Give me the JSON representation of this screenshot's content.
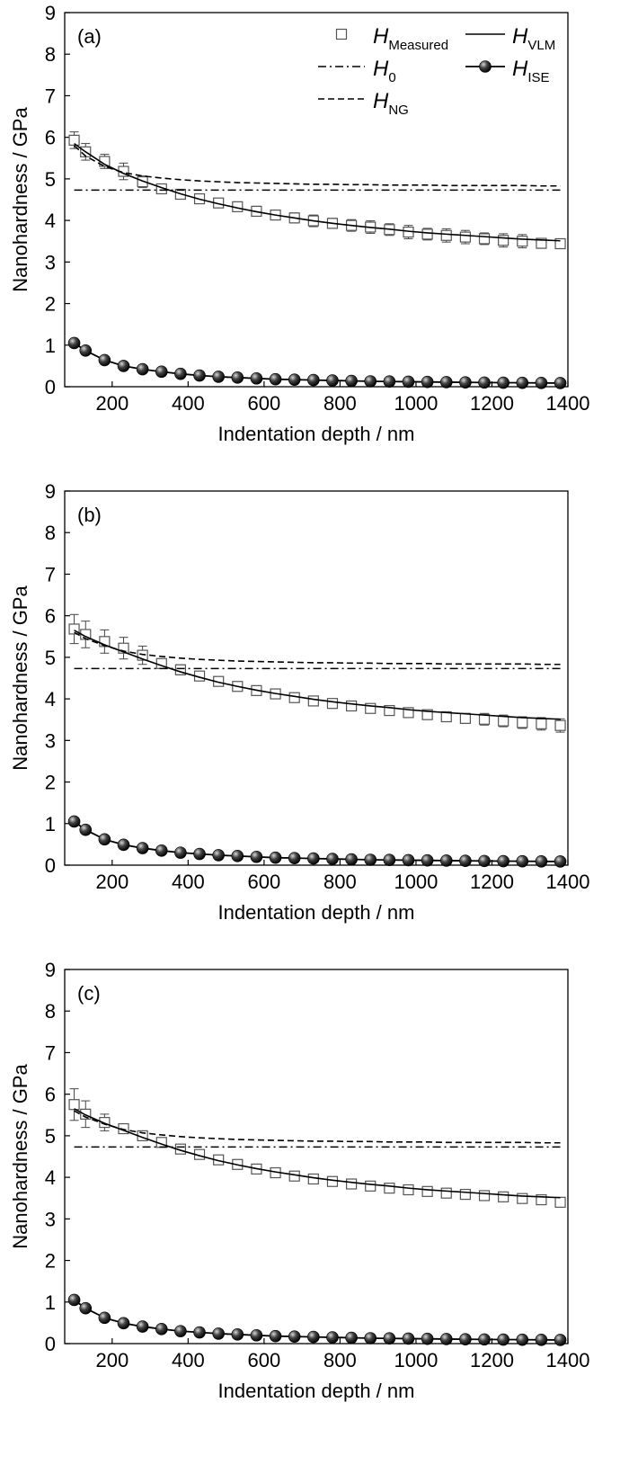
{
  "chart_data": [
    {
      "panel": "(a)",
      "type": "line",
      "xlabel": "Indentation depth / nm",
      "ylabel": "Nanohardness / GPa",
      "xlim": [
        75,
        1400
      ],
      "ylim": [
        0,
        9
      ],
      "xticks": [
        200,
        400,
        600,
        800,
        1000,
        1200,
        1400
      ],
      "yticks": [
        0,
        1,
        2,
        3,
        4,
        5,
        6,
        7,
        8,
        9
      ],
      "legend": [
        {
          "series": "measured",
          "main": "H",
          "sub": "Measured"
        },
        {
          "series": "vlm",
          "main": "H",
          "sub": "VLM"
        },
        {
          "series": "h0",
          "main": "H",
          "sub": "0"
        },
        {
          "series": "ise",
          "main": "H",
          "sub": "ISE"
        },
        {
          "series": "ng",
          "main": "H",
          "sub": "NG"
        }
      ],
      "x": [
        100,
        130,
        180,
        230,
        280,
        330,
        380,
        430,
        480,
        530,
        580,
        630,
        680,
        730,
        780,
        830,
        880,
        930,
        980,
        1030,
        1080,
        1130,
        1180,
        1230,
        1280,
        1330,
        1380
      ],
      "series": [
        {
          "key": "measured",
          "style": "open-square",
          "values": [
            5.93,
            5.65,
            5.42,
            5.18,
            4.93,
            4.76,
            4.63,
            4.52,
            4.42,
            4.33,
            4.22,
            4.13,
            4.06,
            3.99,
            3.93,
            3.88,
            3.84,
            3.78,
            3.72,
            3.67,
            3.64,
            3.6,
            3.56,
            3.52,
            3.5,
            3.45,
            3.44
          ],
          "err": [
            0.2,
            0.2,
            0.17,
            0.2,
            0.14,
            0.1,
            0.1,
            0.1,
            0.08,
            0.08,
            0.12,
            0.1,
            0.12,
            0.14,
            0.12,
            0.14,
            0.15,
            0.14,
            0.16,
            0.14,
            0.16,
            0.16,
            0.14,
            0.16,
            0.16,
            0.12,
            0.12
          ]
        },
        {
          "key": "vlm",
          "style": "solid",
          "values": [
            5.85,
            5.65,
            5.35,
            5.13,
            4.95,
            4.79,
            4.64,
            4.51,
            4.4,
            4.3,
            4.21,
            4.13,
            4.06,
            3.99,
            3.93,
            3.88,
            3.83,
            3.79,
            3.74,
            3.7,
            3.67,
            3.64,
            3.61,
            3.58,
            3.55,
            3.53,
            3.51
          ]
        },
        {
          "key": "h0",
          "style": "dash-dot",
          "values": [
            4.73,
            4.73,
            4.73,
            4.73,
            4.73,
            4.73,
            4.73,
            4.73,
            4.73,
            4.73,
            4.73,
            4.73,
            4.73,
            4.73,
            4.73,
            4.73,
            4.73,
            4.73,
            4.73,
            4.73,
            4.73,
            4.73,
            4.73,
            4.73,
            4.73,
            4.73,
            4.73
          ]
        },
        {
          "key": "ng",
          "style": "dashed",
          "values": [
            5.8,
            5.55,
            5.3,
            5.15,
            5.07,
            5.02,
            4.98,
            4.95,
            4.93,
            4.91,
            4.9,
            4.89,
            4.88,
            4.87,
            4.87,
            4.86,
            4.86,
            4.85,
            4.85,
            4.85,
            4.84,
            4.84,
            4.84,
            4.84,
            4.84,
            4.83,
            4.83
          ]
        },
        {
          "key": "ise",
          "style": "filled-sphere",
          "values": [
            1.05,
            0.87,
            0.64,
            0.5,
            0.42,
            0.36,
            0.31,
            0.27,
            0.24,
            0.22,
            0.2,
            0.18,
            0.17,
            0.16,
            0.15,
            0.14,
            0.13,
            0.125,
            0.12,
            0.115,
            0.11,
            0.105,
            0.1,
            0.097,
            0.094,
            0.091,
            0.088
          ]
        }
      ]
    },
    {
      "panel": "(b)",
      "type": "line",
      "xlabel": "Indentation depth / nm",
      "ylabel": "Nanohardness / GPa",
      "xlim": [
        75,
        1400
      ],
      "ylim": [
        0,
        9
      ],
      "xticks": [
        200,
        400,
        600,
        800,
        1000,
        1200,
        1400
      ],
      "yticks": [
        0,
        1,
        2,
        3,
        4,
        5,
        6,
        7,
        8,
        9
      ],
      "legend": [],
      "x": [
        100,
        130,
        180,
        230,
        280,
        330,
        380,
        430,
        480,
        530,
        580,
        630,
        680,
        730,
        780,
        830,
        880,
        930,
        980,
        1030,
        1080,
        1130,
        1180,
        1230,
        1280,
        1330,
        1380
      ],
      "series": [
        {
          "key": "measured",
          "style": "open-square",
          "values": [
            5.68,
            5.55,
            5.38,
            5.22,
            5.05,
            4.85,
            4.7,
            4.55,
            4.42,
            4.3,
            4.2,
            4.12,
            4.03,
            3.95,
            3.89,
            3.83,
            3.77,
            3.72,
            3.67,
            3.62,
            3.57,
            3.53,
            3.51,
            3.47,
            3.43,
            3.4,
            3.36
          ],
          "err": [
            0.35,
            0.32,
            0.28,
            0.26,
            0.22,
            0.1,
            0.12,
            0.1,
            0.06,
            0.05,
            0.06,
            0.06,
            0.06,
            0.05,
            0.05,
            0.06,
            0.06,
            0.06,
            0.08,
            0.1,
            0.12,
            0.12,
            0.14,
            0.14,
            0.14,
            0.15,
            0.16
          ]
        },
        {
          "key": "vlm",
          "style": "solid",
          "values": [
            5.65,
            5.5,
            5.3,
            5.13,
            4.96,
            4.8,
            4.65,
            4.52,
            4.4,
            4.3,
            4.21,
            4.13,
            4.06,
            3.99,
            3.93,
            3.88,
            3.83,
            3.79,
            3.74,
            3.7,
            3.67,
            3.64,
            3.61,
            3.58,
            3.55,
            3.53,
            3.51
          ]
        },
        {
          "key": "h0",
          "style": "dash-dot",
          "values": [
            4.73,
            4.73,
            4.73,
            4.73,
            4.73,
            4.73,
            4.73,
            4.73,
            4.73,
            4.73,
            4.73,
            4.73,
            4.73,
            4.73,
            4.73,
            4.73,
            4.73,
            4.73,
            4.73,
            4.73,
            4.73,
            4.73,
            4.73,
            4.73,
            4.73,
            4.73,
            4.73
          ]
        },
        {
          "key": "ng",
          "style": "dashed",
          "values": [
            5.6,
            5.45,
            5.28,
            5.15,
            5.07,
            5.02,
            4.98,
            4.95,
            4.93,
            4.91,
            4.9,
            4.89,
            4.88,
            4.87,
            4.87,
            4.86,
            4.86,
            4.85,
            4.85,
            4.85,
            4.84,
            4.84,
            4.84,
            4.84,
            4.84,
            4.83,
            4.83
          ]
        },
        {
          "key": "ise",
          "style": "filled-sphere",
          "values": [
            1.05,
            0.85,
            0.62,
            0.49,
            0.41,
            0.35,
            0.3,
            0.27,
            0.24,
            0.22,
            0.2,
            0.18,
            0.17,
            0.16,
            0.15,
            0.14,
            0.13,
            0.125,
            0.12,
            0.115,
            0.11,
            0.105,
            0.1,
            0.097,
            0.094,
            0.091,
            0.088
          ]
        }
      ]
    },
    {
      "panel": "(c)",
      "type": "line",
      "xlabel": "Indentation depth / nm",
      "ylabel": "Nanohardness / GPa",
      "xlim": [
        75,
        1400
      ],
      "ylim": [
        0,
        9
      ],
      "xticks": [
        200,
        400,
        600,
        800,
        1000,
        1200,
        1400
      ],
      "yticks": [
        0,
        1,
        2,
        3,
        4,
        5,
        6,
        7,
        8,
        9
      ],
      "legend": [],
      "x": [
        100,
        130,
        180,
        230,
        280,
        330,
        380,
        430,
        480,
        530,
        580,
        630,
        680,
        730,
        780,
        830,
        880,
        930,
        980,
        1030,
        1080,
        1130,
        1180,
        1230,
        1280,
        1330,
        1380
      ],
      "series": [
        {
          "key": "measured",
          "style": "open-square",
          "values": [
            5.75,
            5.52,
            5.32,
            5.17,
            5.0,
            4.84,
            4.68,
            4.55,
            4.42,
            4.31,
            4.2,
            4.11,
            4.03,
            3.96,
            3.9,
            3.84,
            3.79,
            3.74,
            3.7,
            3.66,
            3.62,
            3.59,
            3.56,
            3.53,
            3.49,
            3.46,
            3.4
          ],
          "err": [
            0.38,
            0.32,
            0.2,
            0.1,
            0.08,
            0.06,
            0.06,
            0.05,
            0.05,
            0.05,
            0.05,
            0.05,
            0.05,
            0.05,
            0.05,
            0.05,
            0.05,
            0.05,
            0.05,
            0.05,
            0.05,
            0.05,
            0.05,
            0.05,
            0.05,
            0.05,
            0.06
          ]
        },
        {
          "key": "vlm",
          "style": "solid",
          "values": [
            5.65,
            5.5,
            5.3,
            5.13,
            4.96,
            4.8,
            4.65,
            4.52,
            4.4,
            4.3,
            4.21,
            4.13,
            4.06,
            3.99,
            3.93,
            3.88,
            3.83,
            3.79,
            3.74,
            3.7,
            3.67,
            3.64,
            3.61,
            3.58,
            3.55,
            3.53,
            3.51
          ]
        },
        {
          "key": "h0",
          "style": "dash-dot",
          "values": [
            4.73,
            4.73,
            4.73,
            4.73,
            4.73,
            4.73,
            4.73,
            4.73,
            4.73,
            4.73,
            4.73,
            4.73,
            4.73,
            4.73,
            4.73,
            4.73,
            4.73,
            4.73,
            4.73,
            4.73,
            4.73,
            4.73,
            4.73,
            4.73,
            4.73,
            4.73,
            4.73
          ]
        },
        {
          "key": "ng",
          "style": "dashed",
          "values": [
            5.6,
            5.45,
            5.28,
            5.15,
            5.07,
            5.02,
            4.98,
            4.95,
            4.93,
            4.91,
            4.9,
            4.89,
            4.88,
            4.87,
            4.87,
            4.86,
            4.86,
            4.85,
            4.85,
            4.85,
            4.84,
            4.84,
            4.84,
            4.84,
            4.84,
            4.83,
            4.83
          ]
        },
        {
          "key": "ise",
          "style": "filled-sphere",
          "values": [
            1.05,
            0.85,
            0.62,
            0.49,
            0.41,
            0.35,
            0.3,
            0.27,
            0.24,
            0.22,
            0.2,
            0.18,
            0.17,
            0.16,
            0.15,
            0.14,
            0.13,
            0.125,
            0.12,
            0.115,
            0.11,
            0.105,
            0.1,
            0.097,
            0.094,
            0.091,
            0.088
          ]
        }
      ]
    }
  ]
}
